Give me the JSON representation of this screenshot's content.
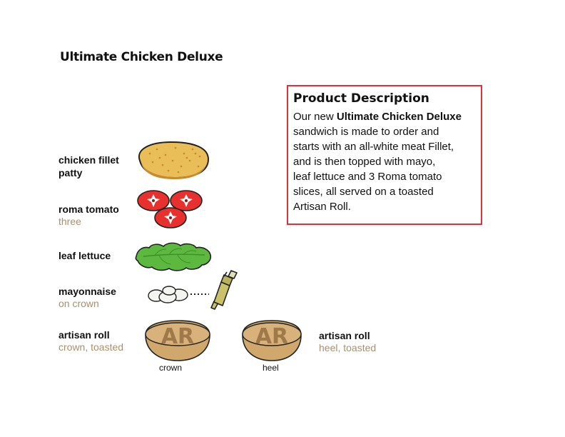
{
  "title": "Ultimate Chicken Deluxe",
  "ingredients": [
    {
      "name": "chicken fillet",
      "name2": "patty",
      "note": ""
    },
    {
      "name": "roma tomato",
      "note": "three"
    },
    {
      "name": "leaf lettuce",
      "note": ""
    },
    {
      "name": "mayonnaise",
      "note": "on crown"
    },
    {
      "name": "artisan roll",
      "note": "crown, toasted"
    }
  ],
  "heel_label": {
    "name": "artisan roll",
    "note": "heel, toasted"
  },
  "bun_text": "AR",
  "captions": {
    "crown": "crown",
    "heel": "heel"
  },
  "description": {
    "heading": "Product Description",
    "intro": "Our new ",
    "product": "Ultimate Chicken Deluxe",
    "lines": [
      "sandwich is made to order and",
      "starts with an all-white meat Fillet,",
      "and is then topped with mayo,",
      "leaf lettuce and 3 Roma tomato",
      "slices, all served on a toasted",
      "Artisan Roll."
    ]
  },
  "colors": {
    "accent_red": "#d9343a",
    "muted_tan": "#a8906c",
    "bun": "#d1a86b",
    "tomato": "#e8312f",
    "lettuce": "#5db840",
    "fillet": "#e9bd58"
  }
}
